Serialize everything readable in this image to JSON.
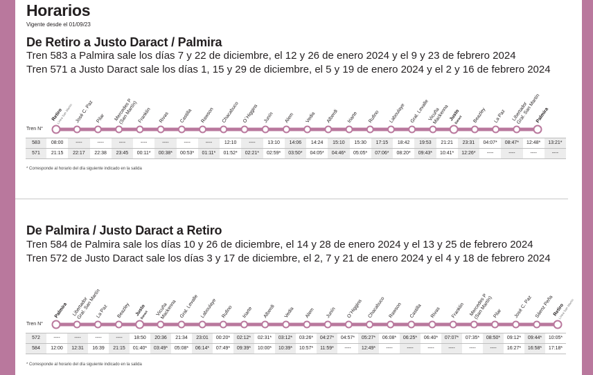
{
  "title": "Horarios",
  "subtitle": "Vigente desde el 01/09/23",
  "colors": {
    "accent": "#b9789d",
    "dark": "#231f20"
  },
  "section1": {
    "title": "De Retiro a Justo Daract / Palmira",
    "line1": "Tren 583 a Palmira sale los días 7 y 22 de diciembre, el 12 y 26 de enero 2024 y el 9 y 23 de febrero 2024",
    "line2": "Tren 571 a Justo Daract sale los días 1, 15 y 29 de diciembre, el 5 y 19 de enero 2024 y el 2 y 16 de febrero 2024",
    "tren_label": "Tren N°",
    "stations": [
      {
        "name": "Retiro",
        "sub": "Línea San Martín",
        "bold": true
      },
      {
        "name": "José C. Paz"
      },
      {
        "name": "Pilar"
      },
      {
        "name": "Mercedes P",
        "sub": "(San Martín)"
      },
      {
        "name": "Franklin"
      },
      {
        "name": "Rivas"
      },
      {
        "name": "Castilla"
      },
      {
        "name": "Rawson"
      },
      {
        "name": "Chacabuco"
      },
      {
        "name": "O´Higgins"
      },
      {
        "name": "Junín"
      },
      {
        "name": "Alem"
      },
      {
        "name": "Vedia"
      },
      {
        "name": "Alberdi"
      },
      {
        "name": "Iriarte"
      },
      {
        "name": "Rufino"
      },
      {
        "name": "Laboulaye"
      },
      {
        "name": "Gral. Levalle"
      },
      {
        "name": "Vicuña",
        "sub": "Mackenna"
      },
      {
        "name": "Justo",
        "sub": "Daract",
        "bold": true
      },
      {
        "name": "Beazley"
      },
      {
        "name": "La Paz"
      },
      {
        "name": "Libertador",
        "sub": "Gral. San Martín"
      },
      {
        "name": "Palmira",
        "bold": true
      }
    ],
    "rows": [
      {
        "tren": "583",
        "times": [
          "08:00",
          "----",
          "----",
          "----",
          "----",
          "----",
          "----",
          "----",
          "12:10",
          "----",
          "13:10",
          "14:06",
          "14:24",
          "15:10",
          "15:30",
          "17:15",
          "18:42",
          "19:53",
          "21:21",
          "23:31",
          "04:07*",
          "08:47*",
          "12:48*",
          "13:21*"
        ]
      },
      {
        "tren": "571",
        "times": [
          "21:15",
          "22:17",
          "22:38",
          "23:45",
          "00:11*",
          "00:38*",
          "00:53*",
          "01:11*",
          "01:52*",
          "02:21*",
          "02:59*",
          "03:50*",
          "04:05*",
          "04:46*",
          "05:05*",
          "07:06*",
          "08:20*",
          "09:43*",
          "10:41*",
          "12:26*",
          "----",
          "----",
          "----",
          "----"
        ]
      }
    ],
    "footnote": "* Corresponde al horario del día siguiente indicado en la salida"
  },
  "section2": {
    "title": "De Palmira / Justo Daract a Retiro",
    "line1": "Tren 584 de Palmira sale los días 10 y 26 de diciembre, el 14 y 28 de enero 2024 y el 13 y 25 de febrero 2024",
    "line2": "Tren 572 de Justo Daract sale los días 3 y 17 de diciembre, el 2, 7 y 21 de enero 2024 y el 4 y 18 de febrero 2024",
    "tren_label": "Tren N°",
    "stations": [
      {
        "name": "Palmira",
        "bold": true
      },
      {
        "name": "Libertador",
        "sub": "Gral. San Martín"
      },
      {
        "name": "La Paz"
      },
      {
        "name": "Beazley"
      },
      {
        "name": "Justo",
        "sub": "Daract",
        "bold": true
      },
      {
        "name": "Vicuña",
        "sub": "Mackenna"
      },
      {
        "name": "Gral. Levalle"
      },
      {
        "name": "Laboulaye"
      },
      {
        "name": "Rufino"
      },
      {
        "name": "Iriarte"
      },
      {
        "name": "Alberdi"
      },
      {
        "name": "Vedia"
      },
      {
        "name": "Alem"
      },
      {
        "name": "Junín"
      },
      {
        "name": "O´Higgins"
      },
      {
        "name": "Chacabuco"
      },
      {
        "name": "Rawson"
      },
      {
        "name": "Castilla"
      },
      {
        "name": "Rivas"
      },
      {
        "name": "Franklin"
      },
      {
        "name": "Mercedes P",
        "sub": "(San Martín)"
      },
      {
        "name": "Pilar"
      },
      {
        "name": "José C. Paz"
      },
      {
        "name": "Sáenz Peña"
      },
      {
        "name": "Retiro",
        "sub": "Línea San Martín",
        "bold": true
      }
    ],
    "rows": [
      {
        "tren": "572",
        "times": [
          "----",
          "----",
          "----",
          "----",
          "18:50",
          "20:36",
          "21:34",
          "23:01",
          "00:20*",
          "02:12*",
          "02:31*",
          "03:12*",
          "03:26*",
          "04:27*",
          "04:57*",
          "05:27*",
          "06:08*",
          "06:25*",
          "06:40*",
          "07:07*",
          "07:35*",
          "08:50*",
          "09:12*",
          "09:44*",
          "10:05*"
        ]
      },
      {
        "tren": "584",
        "times": [
          "12:00",
          "12:31",
          "16:39",
          "21:15",
          "01:40*",
          "03:49*",
          "05:08*",
          "06:14*",
          "07:49*",
          "09:39*",
          "10:00*",
          "10:39*",
          "10:57*",
          "11:59*",
          "----",
          "12:49*",
          "----",
          "----",
          "----",
          "----",
          "----",
          "----",
          "16:27*",
          "16:58*",
          "17:18*"
        ]
      }
    ],
    "footnote": "* Corresponde al horario del día siguiente indicado en la salida"
  }
}
